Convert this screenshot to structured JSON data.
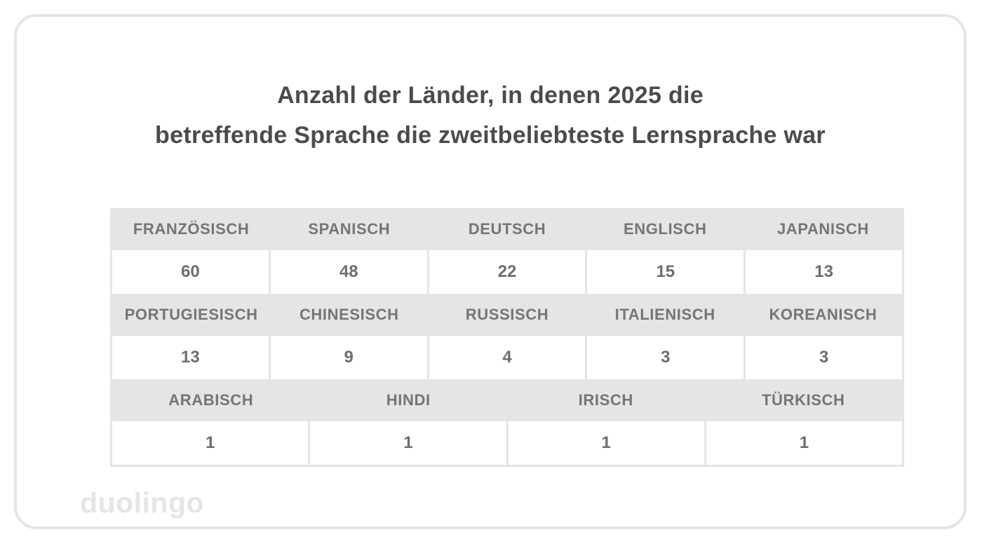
{
  "title": {
    "line1": "Anzahl der Länder, in denen 2025 die",
    "line2": "betreffende Sprache die zweitbeliebteste Lernsprache war"
  },
  "table": {
    "groups": [
      {
        "headers": [
          "FRANZÖSISCH",
          "SPANISCH",
          "DEUTSCH",
          "ENGLISCH",
          "JAPANISCH"
        ],
        "values": [
          "60",
          "48",
          "22",
          "15",
          "13"
        ]
      },
      {
        "headers": [
          "PORTUGIESISCH",
          "CHINESISCH",
          "RUSSISCH",
          "ITALIENISCH",
          "KOREANISCH"
        ],
        "values": [
          "13",
          "9",
          "4",
          "3",
          "3"
        ]
      },
      {
        "headers": [
          "ARABISCH",
          "HINDI",
          "IRISCH",
          "TÜRKISCH"
        ],
        "values": [
          "1",
          "1",
          "1",
          "1"
        ]
      }
    ]
  },
  "logo": {
    "text": "duolingo"
  },
  "colors": {
    "band_gray": "#e5e5e5",
    "header_text": "#757575",
    "value_text": "#6e6e6e",
    "title_text": "#4b4b4b",
    "card_border": "#e5e5e5",
    "logo_gray": "#e5e5e5",
    "background": "#ffffff"
  },
  "chart_data": {
    "type": "table",
    "title": "Anzahl der Länder, in denen 2025 die betreffende Sprache die zweitbeliebteste Lernsprache war",
    "categories": [
      "Französisch",
      "Spanisch",
      "Deutsch",
      "Englisch",
      "Japanisch",
      "Portugiesisch",
      "Chinesisch",
      "Russisch",
      "Italienisch",
      "Koreanisch",
      "Arabisch",
      "Hindi",
      "Irisch",
      "Türkisch"
    ],
    "values": [
      60,
      48,
      22,
      15,
      13,
      13,
      9,
      4,
      3,
      3,
      1,
      1,
      1,
      1
    ]
  }
}
